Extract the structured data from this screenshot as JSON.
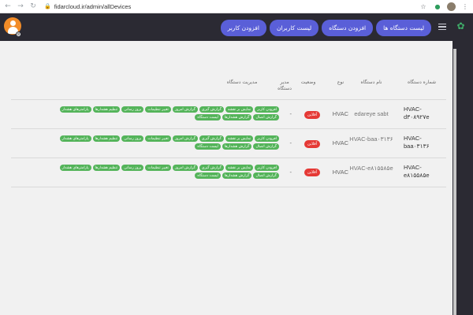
{
  "browser": {
    "url": "fidarcloud.ir/admin/allDevices"
  },
  "header": {
    "nav": [
      {
        "label": "لیست دستگاه ها",
        "name": "nav-device-list-button"
      },
      {
        "label": "افزودن دستگاه",
        "name": "nav-add-device-button"
      },
      {
        "label": "لیست کاربران",
        "name": "nav-user-list-button"
      },
      {
        "label": "افزودن کاربر",
        "name": "nav-add-user-button"
      }
    ]
  },
  "table": {
    "headers": {
      "device_number": "شماره دستگاه",
      "device_name": "نام دستگاه",
      "type": "نوع",
      "status": "وضعیت",
      "manager": "مدیر دستگاه",
      "management": "مدیریت دستگاه"
    },
    "rows": [
      {
        "device_number": "HVAC-d۳۰۸۹۲۷e",
        "device_name": "edareye sabt",
        "type": "HVAC",
        "status": "آفلاین",
        "manager": "-",
        "actions": [
          "افزودن کاربر",
          "نمایش بر نقشه",
          "گزارش گیری",
          "گزارش امروز",
          "تغییر تنظیمات",
          "بروز رسانی",
          "تنظیم هشدارها",
          "پارامترهای هشدار",
          "گزارش اتصال",
          "گزارش هشدارها",
          "لیست دستگاه"
        ]
      },
      {
        "device_number": "HVAC-baa۰۳۱۳۶",
        "device_name": "HVAC-baa۰۳۱۳۶",
        "type": "HVAC",
        "status": "آفلاین",
        "manager": "-",
        "actions": [
          "افزودن کاربر",
          "نمایش بر نقشه",
          "گزارش گیری",
          "گزارش امروز",
          "تغییر تنظیمات",
          "بروز رسانی",
          "تنظیم هشدارها",
          "پارامترهای هشدار",
          "گزارش اتصال",
          "گزارش هشدارها",
          "لیست دستگاه"
        ]
      },
      {
        "device_number": "HVAC-e۸۱۵۵۸۵e",
        "device_name": "HVAC-e۸۱۵۵۸۵e",
        "type": "HVAC",
        "status": "آفلاین",
        "manager": "-",
        "actions": [
          "افزودن کاربر",
          "نمایش بر نقشه",
          "گزارش گیری",
          "گزارش امروز",
          "تغییر تنظیمات",
          "بروز رسانی",
          "تنظیم هشدارها",
          "پارامترهای هشدار",
          "گزارش اتصال",
          "گزارش هشدارها",
          "لیست دستگاه"
        ]
      }
    ]
  },
  "colors": {
    "header_bg": "#2b2a33",
    "nav_button": "#5a5fd8",
    "action_chip": "#54b45a",
    "status_offline": "#e53935",
    "avatar": "#f28c28"
  },
  "icons": {
    "back": "arrow-left-icon",
    "forward": "arrow-right-icon",
    "reload": "reload-icon",
    "lock": "lock-icon",
    "bookmark": "star-icon",
    "menu": "hamburger-menu-icon",
    "user": "user-avatar-icon",
    "logo": "app-logo-icon"
  }
}
